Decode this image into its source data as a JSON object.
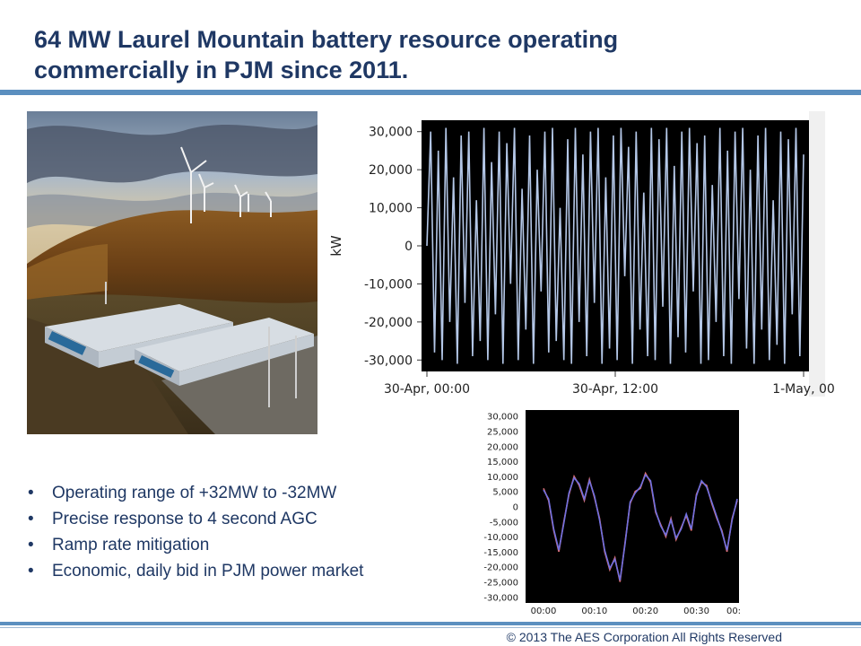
{
  "slide": {
    "title_line1": "64 MW Laurel Mountain battery resource operating",
    "title_line2": "commercially in PJM since 2011.",
    "footer": "© 2013 The AES Corporation All Rights Reserved",
    "accent_color": "#5b8fbf",
    "title_color": "#1f3864"
  },
  "bullets": [
    "Operating range of +32MW to -32MW",
    "Precise response to 4 second AGC",
    "Ramp rate mitigation",
    "Economic, daily bid in PJM power market"
  ],
  "photo": {
    "description_icon": "wind-farm-battery-photo"
  },
  "chart_data": [
    {
      "type": "line",
      "title": "",
      "xlabel": "",
      "ylabel": "kW",
      "ylim": [
        -33000,
        33000
      ],
      "yticks": [
        "30,000",
        "20,000",
        "10,000",
        "0",
        "-10,000",
        "-20,000",
        "-30,000"
      ],
      "ytick_values": [
        30000,
        20000,
        10000,
        0,
        -10000,
        -20000,
        -30000
      ],
      "xticks": [
        "30-Apr, 00:00",
        "30-Apr, 12:00",
        "1-May, 00"
      ],
      "background": "#000000",
      "line_color": "#b4c7e7",
      "series": [
        {
          "values": [
            0,
            30000,
            -28000,
            25000,
            -30000,
            31000,
            -20000,
            18000,
            -31000,
            29000,
            -15000,
            30000,
            -29000,
            12000,
            -25000,
            31000,
            -30000,
            22000,
            -18000,
            30000,
            -31000,
            27000,
            -10000,
            31000,
            -30000,
            15000,
            -22000,
            29000,
            -31000,
            20000,
            -12000,
            30000,
            -28000,
            31000,
            -25000,
            10000,
            -30000,
            28000,
            -31000,
            31000,
            -20000,
            24000,
            -29000,
            30000,
            -15000,
            31000,
            -31000,
            18000,
            -27000,
            29000,
            -30000,
            31000,
            -8000,
            26000,
            -31000,
            30000,
            -22000,
            14000,
            -29000,
            31000,
            -30000,
            28000,
            -16000,
            31000,
            -31000,
            21000,
            -24000,
            30000,
            -28000,
            31000,
            -12000,
            27000,
            -31000,
            29000,
            -30000,
            16000,
            -20000,
            31000,
            -29000,
            25000,
            -31000,
            30000,
            -14000,
            31000,
            -27000,
            20000,
            -31000,
            29000,
            -22000,
            31000,
            -30000,
            12000,
            -26000,
            30000,
            -31000,
            28000,
            -18000,
            31000,
            -29000,
            24000
          ]
        }
      ]
    },
    {
      "type": "line",
      "title": "",
      "xlabel": "",
      "ylabel": "",
      "ylim": [
        -32000,
        32000
      ],
      "yticks": [
        "30,000",
        "25,000",
        "20,000",
        "15,000",
        "10,000",
        "5,000",
        "0",
        "-5,000",
        "-10,000",
        "-15,000",
        "-20,000",
        "-25,000",
        "-30,000"
      ],
      "ytick_values": [
        30000,
        25000,
        20000,
        15000,
        10000,
        5000,
        0,
        -5000,
        -10000,
        -15000,
        -20000,
        -25000,
        -30000
      ],
      "xticks": [
        "00:00",
        "00:10",
        "00:20",
        "00:30",
        "00:"
      ],
      "xlim": [
        0,
        38
      ],
      "xtick_values": [
        0,
        10,
        20,
        30,
        38
      ],
      "background": "#000000",
      "series": [
        {
          "color": "#e07070",
          "x": [
            0,
            1,
            2,
            3,
            4,
            5,
            6,
            7,
            8,
            9,
            10,
            11,
            12,
            13,
            14,
            15,
            16,
            17,
            18,
            19,
            20,
            21,
            22,
            23,
            24,
            25,
            26,
            27,
            28,
            29,
            30,
            31,
            32,
            33,
            34,
            35,
            36,
            37,
            38
          ],
          "values": [
            6000,
            2000,
            -8000,
            -15000,
            -5000,
            4000,
            10000,
            7000,
            2000,
            9000,
            3000,
            -4000,
            -15000,
            -21000,
            -17000,
            -25000,
            -12000,
            1000,
            5000,
            6000,
            11000,
            8000,
            -2000,
            -6000,
            -10000,
            -4000,
            -11000,
            -7000,
            -3000,
            -8000,
            4000,
            8000,
            7000,
            1000,
            -4000,
            -8000,
            -15000,
            -4000,
            2000
          ]
        },
        {
          "color": "#7070e0",
          "x": [
            0,
            1,
            2,
            3,
            4,
            5,
            6,
            7,
            8,
            9,
            10,
            11,
            12,
            13,
            14,
            15,
            16,
            17,
            18,
            19,
            20,
            21,
            22,
            23,
            24,
            25,
            26,
            27,
            28,
            29,
            30,
            31,
            32,
            33,
            34,
            35,
            36,
            37,
            38
          ],
          "values": [
            5500,
            2500,
            -7500,
            -14500,
            -5500,
            4500,
            9500,
            7500,
            2500,
            8500,
            3500,
            -4500,
            -14500,
            -20500,
            -17500,
            -24500,
            -12500,
            1500,
            4500,
            6500,
            10500,
            8500,
            -1500,
            -6500,
            -9500,
            -4500,
            -10500,
            -7500,
            -2500,
            -7500,
            3500,
            8500,
            6500,
            1500,
            -3500,
            -8500,
            -14500,
            -4500,
            2500
          ]
        }
      ]
    }
  ]
}
